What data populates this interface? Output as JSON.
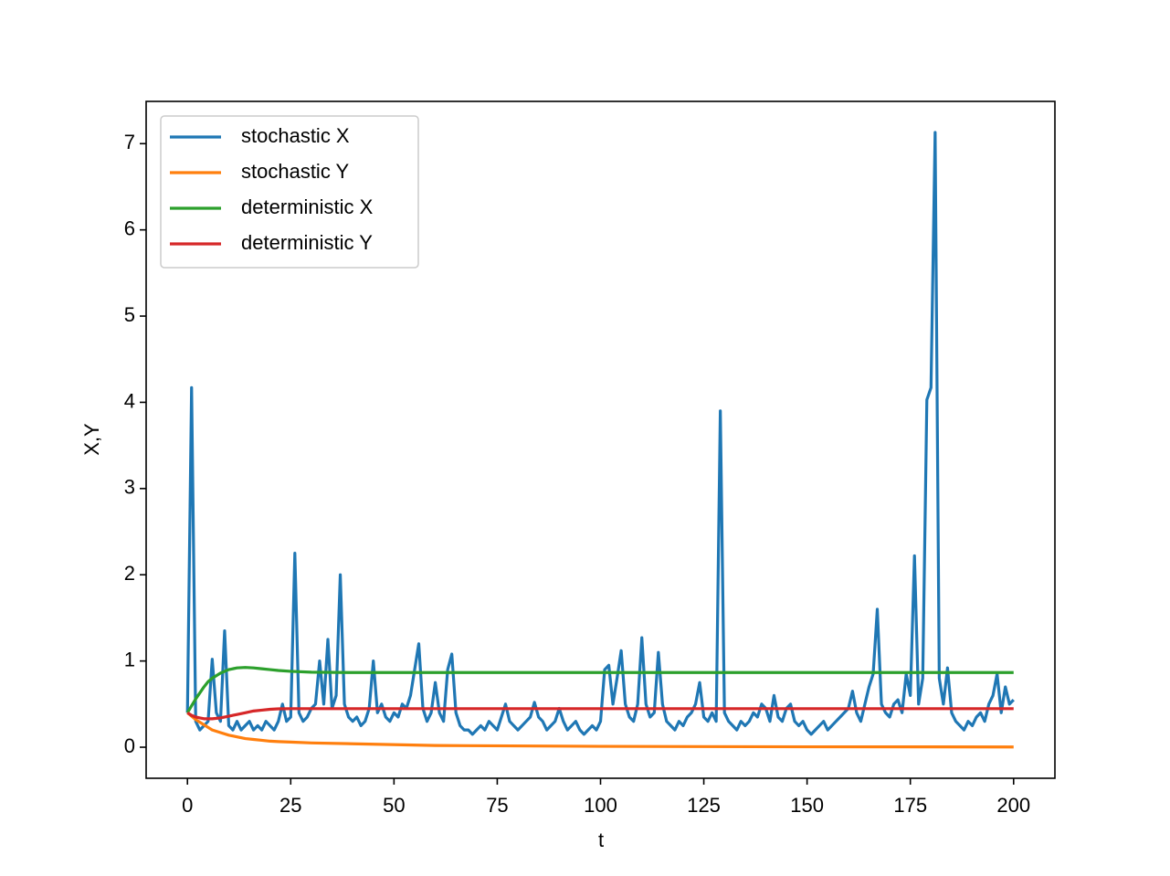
{
  "chart_data": {
    "type": "line",
    "xlabel": "t",
    "ylabel": "X,Y",
    "legend": "upper left",
    "xlim": [
      -10,
      210
    ],
    "xticks": [
      0,
      25,
      50,
      75,
      100,
      125,
      150,
      175,
      200
    ],
    "ylim": [
      -0.36,
      7.49
    ],
    "yticks": [
      0,
      1,
      2,
      3,
      4,
      5,
      6,
      7
    ],
    "series": [
      {
        "name": "stochastic X",
        "color": "#1f77b4",
        "x": [
          0,
          1,
          2,
          3,
          4,
          5,
          6,
          7,
          8,
          9,
          10,
          11,
          12,
          13,
          14,
          15,
          16,
          17,
          18,
          19,
          20,
          21,
          22,
          23,
          24,
          25,
          26,
          27,
          28,
          29,
          30,
          31,
          32,
          33,
          34,
          35,
          36,
          37,
          38,
          39,
          40,
          41,
          42,
          43,
          44,
          45,
          46,
          47,
          48,
          49,
          50,
          51,
          52,
          53,
          54,
          55,
          56,
          57,
          58,
          59,
          60,
          61,
          62,
          63,
          64,
          65,
          66,
          67,
          68,
          69,
          70,
          71,
          72,
          73,
          74,
          75,
          76,
          77,
          78,
          79,
          80,
          81,
          82,
          83,
          84,
          85,
          86,
          87,
          88,
          89,
          90,
          91,
          92,
          93,
          94,
          95,
          96,
          97,
          98,
          99,
          100,
          101,
          102,
          103,
          104,
          105,
          106,
          107,
          108,
          109,
          110,
          111,
          112,
          113,
          114,
          115,
          116,
          117,
          118,
          119,
          120,
          121,
          122,
          123,
          124,
          125,
          126,
          127,
          128,
          129,
          130,
          131,
          132,
          133,
          134,
          135,
          136,
          137,
          138,
          139,
          140,
          141,
          142,
          143,
          144,
          145,
          146,
          147,
          148,
          149,
          150,
          151,
          152,
          153,
          154,
          155,
          156,
          157,
          158,
          159,
          160,
          161,
          162,
          163,
          164,
          165,
          166,
          167,
          168,
          169,
          170,
          171,
          172,
          173,
          174,
          175,
          176,
          177,
          178,
          179,
          180,
          181,
          182,
          183,
          184,
          185,
          186,
          187,
          188,
          189,
          190,
          191,
          192,
          193,
          194,
          195,
          196,
          197,
          198,
          199,
          200
        ],
        "values": [
          0.4,
          4.17,
          0.3,
          0.2,
          0.25,
          0.3,
          1.02,
          0.4,
          0.3,
          1.35,
          0.25,
          0.2,
          0.3,
          0.2,
          0.25,
          0.3,
          0.2,
          0.25,
          0.2,
          0.3,
          0.25,
          0.2,
          0.3,
          0.5,
          0.3,
          0.35,
          2.25,
          0.4,
          0.3,
          0.35,
          0.45,
          0.5,
          1.0,
          0.5,
          1.25,
          0.45,
          0.6,
          2.0,
          0.5,
          0.35,
          0.3,
          0.35,
          0.25,
          0.3,
          0.45,
          1.0,
          0.4,
          0.5,
          0.35,
          0.3,
          0.4,
          0.35,
          0.5,
          0.45,
          0.6,
          0.9,
          1.2,
          0.45,
          0.3,
          0.4,
          0.75,
          0.4,
          0.3,
          0.9,
          1.08,
          0.4,
          0.25,
          0.2,
          0.2,
          0.15,
          0.2,
          0.25,
          0.2,
          0.3,
          0.25,
          0.2,
          0.35,
          0.5,
          0.3,
          0.25,
          0.2,
          0.25,
          0.3,
          0.35,
          0.52,
          0.35,
          0.3,
          0.2,
          0.25,
          0.3,
          0.45,
          0.3,
          0.2,
          0.25,
          0.3,
          0.2,
          0.15,
          0.2,
          0.25,
          0.2,
          0.3,
          0.9,
          0.95,
          0.5,
          0.8,
          1.12,
          0.5,
          0.35,
          0.3,
          0.5,
          1.27,
          0.5,
          0.35,
          0.4,
          1.1,
          0.5,
          0.3,
          0.25,
          0.2,
          0.3,
          0.25,
          0.35,
          0.4,
          0.5,
          0.75,
          0.35,
          0.3,
          0.4,
          0.3,
          3.9,
          0.4,
          0.3,
          0.25,
          0.2,
          0.3,
          0.25,
          0.3,
          0.4,
          0.35,
          0.5,
          0.45,
          0.3,
          0.6,
          0.35,
          0.3,
          0.45,
          0.5,
          0.3,
          0.25,
          0.3,
          0.2,
          0.15,
          0.2,
          0.25,
          0.3,
          0.2,
          0.25,
          0.3,
          0.35,
          0.4,
          0.45,
          0.65,
          0.4,
          0.3,
          0.5,
          0.7,
          0.85,
          1.6,
          0.5,
          0.4,
          0.35,
          0.5,
          0.55,
          0.4,
          0.85,
          0.6,
          2.22,
          0.5,
          0.8,
          4.03,
          4.17,
          7.13,
          0.8,
          0.5,
          0.92,
          0.4,
          0.3,
          0.25,
          0.2,
          0.3,
          0.25,
          0.35,
          0.4,
          0.3,
          0.5,
          0.6,
          0.85,
          0.4,
          0.7,
          0.5,
          0.55
        ]
      },
      {
        "name": "stochastic Y",
        "color": "#ff7f0e",
        "x": [
          0,
          1,
          2,
          3,
          4,
          5,
          6,
          8,
          10,
          12,
          14,
          16,
          18,
          20,
          22,
          25,
          30,
          40,
          60,
          100,
          150,
          200
        ],
        "values": [
          0.4,
          0.36,
          0.32,
          0.29,
          0.26,
          0.23,
          0.2,
          0.17,
          0.14,
          0.12,
          0.1,
          0.09,
          0.08,
          0.07,
          0.065,
          0.06,
          0.05,
          0.04,
          0.02,
          0.01,
          0.005,
          0.003
        ]
      },
      {
        "name": "deterministic X",
        "color": "#2ca02c",
        "x": [
          0,
          1,
          2,
          3,
          4,
          5,
          6,
          8,
          10,
          12,
          14,
          16,
          18,
          20,
          22,
          25,
          30,
          40,
          60,
          100,
          150,
          200
        ],
        "values": [
          0.4,
          0.48,
          0.56,
          0.63,
          0.7,
          0.76,
          0.8,
          0.86,
          0.9,
          0.92,
          0.925,
          0.92,
          0.91,
          0.9,
          0.89,
          0.88,
          0.87,
          0.866,
          0.866,
          0.866,
          0.866,
          0.866
        ]
      },
      {
        "name": "deterministic Y",
        "color": "#d62728",
        "x": [
          0,
          1,
          2,
          3,
          4,
          5,
          6,
          8,
          10,
          12,
          14,
          16,
          18,
          20,
          22,
          25,
          30,
          40,
          60,
          100,
          150,
          200
        ],
        "values": [
          0.4,
          0.37,
          0.35,
          0.34,
          0.33,
          0.33,
          0.33,
          0.34,
          0.36,
          0.38,
          0.4,
          0.42,
          0.43,
          0.44,
          0.445,
          0.447,
          0.447,
          0.447,
          0.447,
          0.447,
          0.447,
          0.447
        ]
      }
    ]
  }
}
